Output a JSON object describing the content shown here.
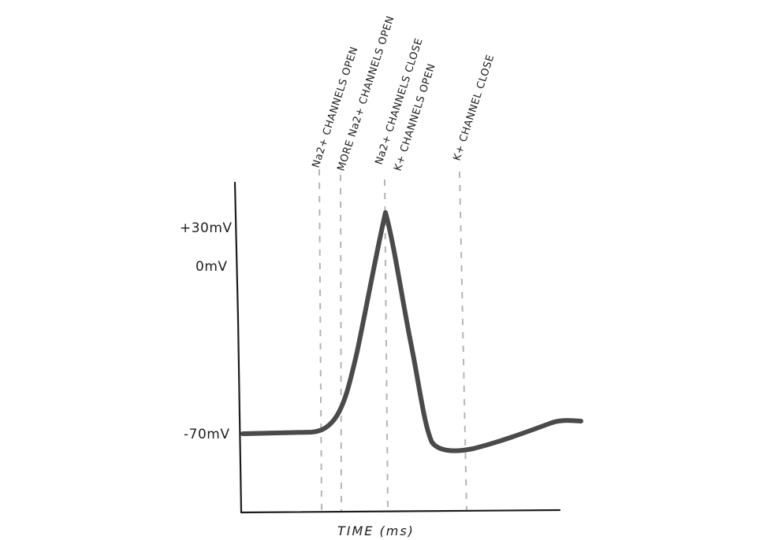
{
  "diagram": {
    "y_labels": {
      "plus30": "+30mV",
      "zero": "0mV",
      "minus70": "-70mV"
    },
    "x_label": "TIME (ms)",
    "annotations": [
      {
        "text": "Na2+ CHANNELS OPEN"
      },
      {
        "text": "MORE Na2+ CHANNELS OPEN"
      },
      {
        "text": "Na2+ CHANNELS CLOSE"
      },
      {
        "text": "K+ CHANNELS OPEN"
      },
      {
        "text": "K+ CHANNEL CLOSE"
      }
    ],
    "colors": {
      "axis": "#1c1c1c",
      "trace": "#4a4a4a",
      "guides": "#b5b5b5",
      "text": "#1e1e1e"
    }
  }
}
